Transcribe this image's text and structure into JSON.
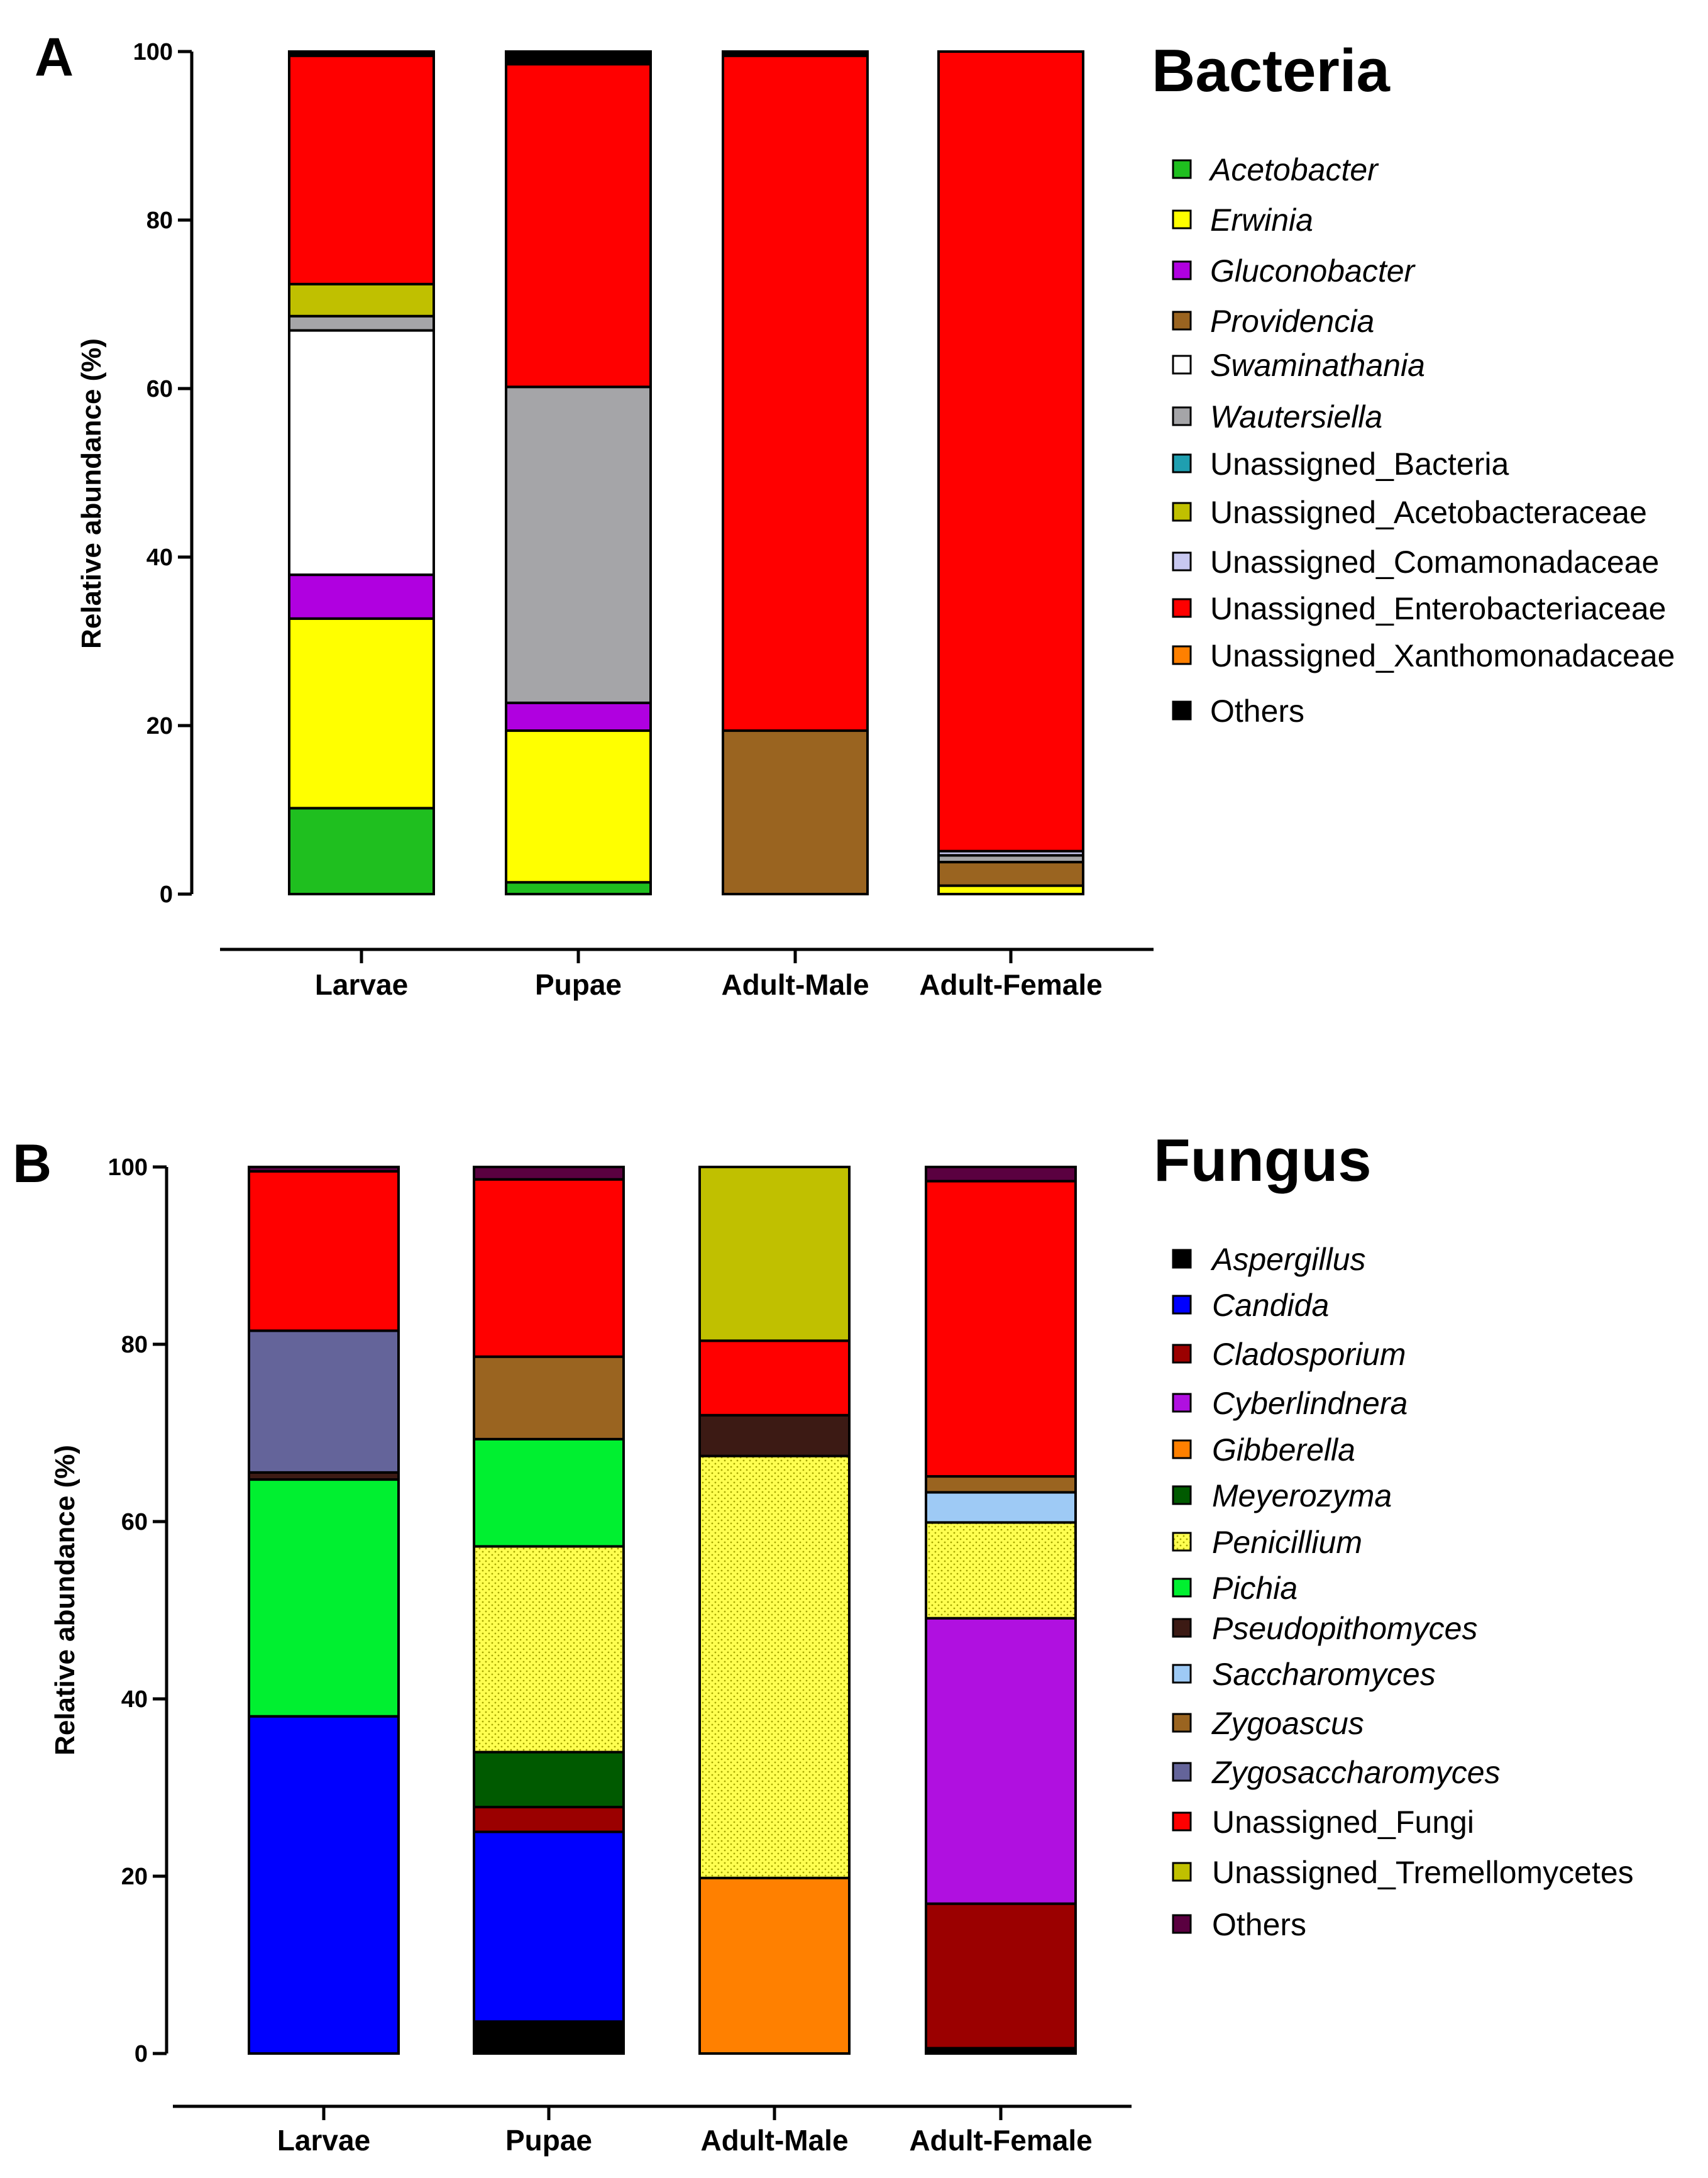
{
  "chart_data": [
    {
      "type": "bar",
      "stacked": true,
      "panel": "A",
      "title": "Bacteria",
      "xlabel": "",
      "ylabel": "Relative abundance (%)",
      "ylim": [
        0,
        100
      ],
      "yticks": [
        "0",
        "20",
        "40",
        "60",
        "80",
        "100"
      ],
      "categories": [
        "Larvae",
        "Pupae",
        "Adult-Male",
        "Adult-Female"
      ],
      "series": [
        {
          "name": "Acetobacter",
          "italic": true,
          "color": "#1fbf1f",
          "values": [
            10.2,
            1.4,
            0,
            0
          ]
        },
        {
          "name": "Erwinia",
          "italic": true,
          "color": "#ffff00",
          "values": [
            22.5,
            18.0,
            0,
            1.0
          ]
        },
        {
          "name": "Gluconobacter",
          "italic": true,
          "color": "#b000e0",
          "values": [
            5.2,
            3.3,
            0,
            0
          ]
        },
        {
          "name": "Providencia",
          "italic": true,
          "color": "#9a6420",
          "values": [
            0,
            0,
            19.4,
            2.8
          ]
        },
        {
          "name": "Swaminathania",
          "italic": true,
          "color": "#ffffff",
          "values": [
            29.0,
            0,
            0,
            0
          ]
        },
        {
          "name": "Wautersiella",
          "italic": true,
          "color": "#a5a5a8",
          "values": [
            1.7,
            37.5,
            0,
            0.8
          ]
        },
        {
          "name": "Unassigned_Bacteria",
          "italic": false,
          "color": "#1f9fb0",
          "values": [
            0,
            0,
            0,
            0
          ]
        },
        {
          "name": "Unassigned_Acetobacteraceae",
          "italic": false,
          "color": "#c0c000",
          "values": [
            3.8,
            0,
            0,
            0
          ]
        },
        {
          "name": "Unassigned_Comamonadaceae",
          "italic": false,
          "color": "#c8c8f0",
          "values": [
            0,
            0,
            0,
            0.5
          ]
        },
        {
          "name": "Unassigned_Enterobacteriaceae",
          "italic": false,
          "color": "#ff0000",
          "values": [
            27.1,
            38.3,
            80.1,
            94.9
          ]
        },
        {
          "name": "Unassigned_Xanthomonadaceae",
          "italic": false,
          "color": "#ff8000",
          "values": [
            0,
            0,
            0,
            0
          ]
        },
        {
          "name": "Others",
          "italic": false,
          "color": "#000000",
          "values": [
            0.5,
            1.5,
            0.5,
            0
          ]
        }
      ]
    },
    {
      "type": "bar",
      "stacked": true,
      "panel": "B",
      "title": "Fungus",
      "xlabel": "",
      "ylabel": "Relative abundance (%)",
      "ylim": [
        0,
        100
      ],
      "yticks": [
        "0",
        "20",
        "40",
        "60",
        "80",
        "100"
      ],
      "categories": [
        "Larvae",
        "Pupae",
        "Adult-Male",
        "Adult-Female"
      ],
      "series": [
        {
          "name": "Aspergillus",
          "italic": true,
          "color": "#000000",
          "values": [
            0,
            3.6,
            0,
            0.6
          ]
        },
        {
          "name": "Candida",
          "italic": true,
          "color": "#0000ff",
          "values": [
            38.3,
            21.4,
            0,
            0
          ]
        },
        {
          "name": "Cladosporium",
          "italic": true,
          "color": "#9b0000",
          "values": [
            0,
            2.8,
            0,
            16.3
          ]
        },
        {
          "name": "Cyberlindnera",
          "italic": true,
          "color": "#b010e0",
          "values": [
            0,
            0,
            0,
            32.2
          ]
        },
        {
          "name": "Gibberella",
          "italic": true,
          "color": "#ff8000",
          "values": [
            0,
            0,
            19.8,
            0
          ]
        },
        {
          "name": "Meyerozyma",
          "italic": true,
          "color": "#005a00",
          "values": [
            0,
            6.2,
            0,
            0
          ]
        },
        {
          "name": "Penicillium",
          "italic": true,
          "color": "#ffff50",
          "values": [
            0,
            23.2,
            47.6,
            10.8
          ]
        },
        {
          "name": "Pichia",
          "italic": true,
          "color": "#00f030",
          "values": [
            26.9,
            12.1,
            0,
            0
          ]
        },
        {
          "name": "Pseudopithomyces",
          "italic": true,
          "color": "#3c1a14",
          "values": [
            0.8,
            0,
            4.6,
            0
          ]
        },
        {
          "name": "Saccharomyces",
          "italic": true,
          "color": "#9ecaf5",
          "values": [
            0,
            0,
            0,
            3.4
          ]
        },
        {
          "name": "Zygoascus",
          "italic": true,
          "color": "#9a6420",
          "values": [
            0,
            9.3,
            0,
            1.8
          ]
        },
        {
          "name": "Zygosaccharomyces",
          "italic": true,
          "color": "#64649a",
          "values": [
            16.1,
            0,
            0,
            0
          ]
        },
        {
          "name": "Unassigned_Fungi",
          "italic": false,
          "color": "#ff0000",
          "values": [
            18.1,
            20.0,
            8.4,
            33.3
          ]
        },
        {
          "name": "Unassigned_Tremellomycetes",
          "italic": false,
          "color": "#c0c000",
          "values": [
            0,
            0,
            19.6,
            0
          ]
        },
        {
          "name": "Others",
          "italic": false,
          "color": "#5a0040",
          "values": [
            0.5,
            1.4,
            0,
            1.6
          ]
        }
      ]
    }
  ]
}
